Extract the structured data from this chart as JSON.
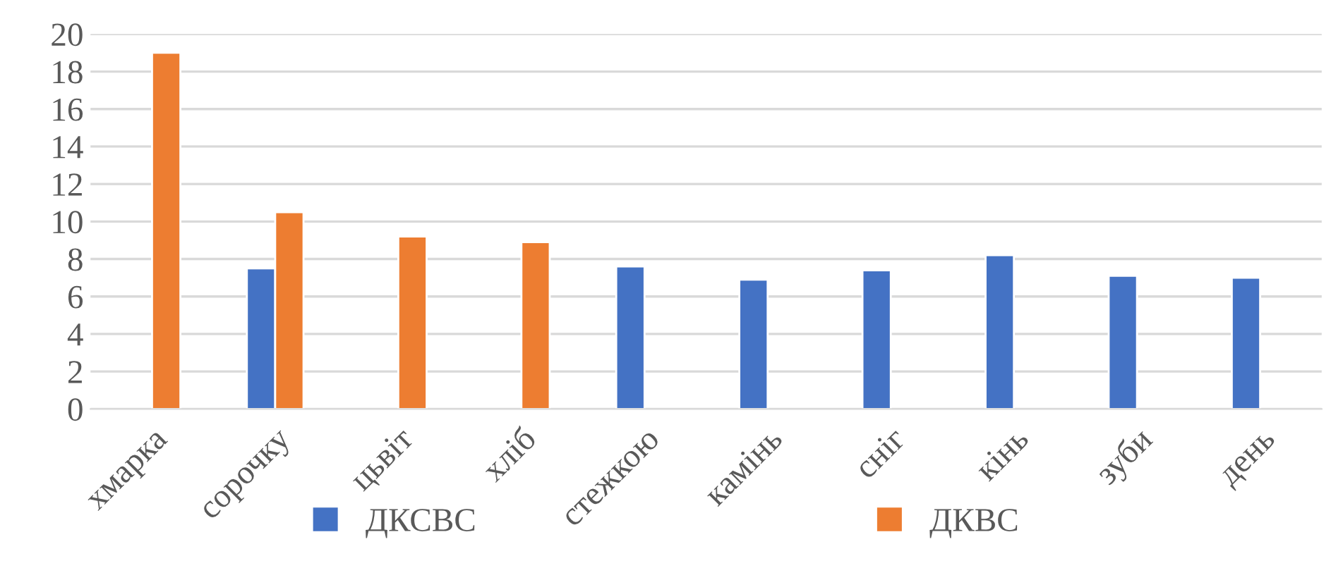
{
  "chart_data": {
    "type": "bar",
    "categories": [
      "хмарка",
      "сорочку",
      "цьвіт",
      "хліб",
      "стежкою",
      "камінь",
      "сніг",
      "кінь",
      "зуби",
      "день"
    ],
    "series": [
      {
        "name": "ДКСВС",
        "color": "#4472c4",
        "values": [
          null,
          7.5,
          null,
          null,
          7.6,
          6.9,
          7.4,
          8.2,
          7.1,
          7.0
        ]
      },
      {
        "name": "ДКВС",
        "color": "#ed7d31",
        "values": [
          19.0,
          10.5,
          9.2,
          8.9,
          null,
          null,
          null,
          null,
          null,
          null
        ]
      }
    ],
    "ylim": [
      0,
      20
    ],
    "yticks": [
      0,
      2,
      4,
      6,
      8,
      10,
      12,
      14,
      16,
      18,
      20
    ],
    "grid": "y",
    "legend": "bottom"
  }
}
